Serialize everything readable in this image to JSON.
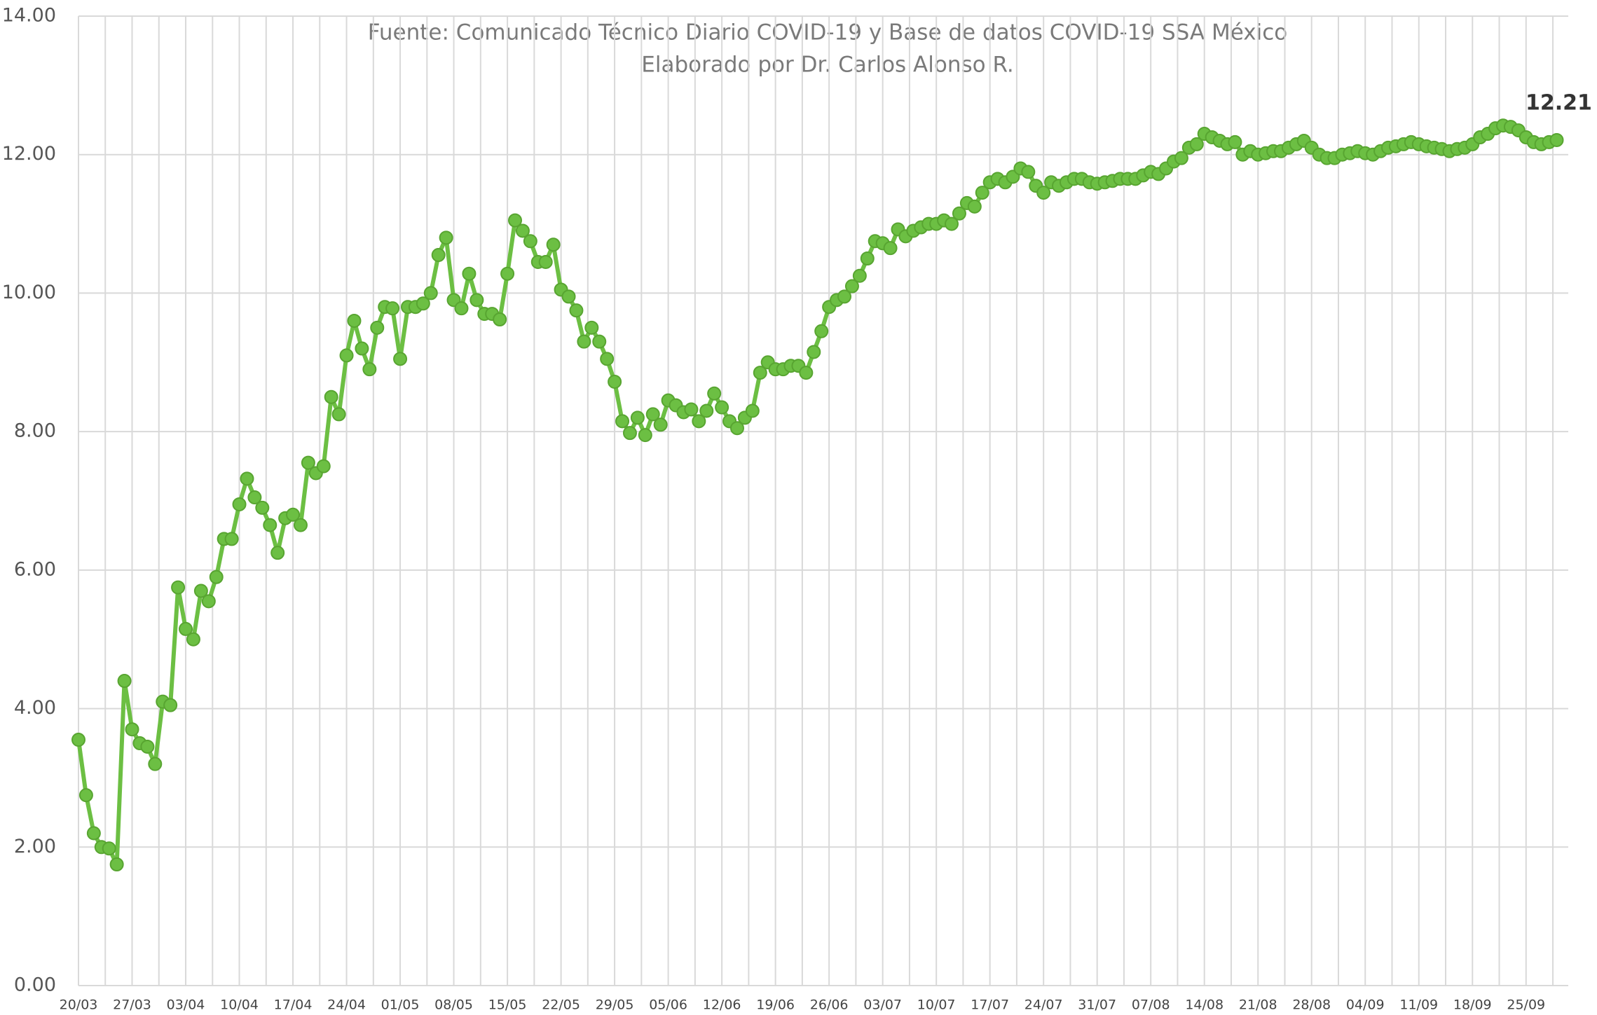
{
  "chart_data": {
    "type": "line",
    "subtitle": [
      "Fuente: Comunicado Técnico Diario COVID-19 y Base de datos COVID-19 SSA México",
      "Elaborado por Dr. Carlos Alonso R."
    ],
    "categories": [
      "20/03",
      null,
      null,
      null,
      null,
      null,
      null,
      "27/03",
      null,
      null,
      null,
      null,
      null,
      null,
      "03/04",
      null,
      null,
      null,
      null,
      null,
      null,
      "10/04",
      null,
      null,
      null,
      null,
      null,
      null,
      "17/04",
      null,
      null,
      null,
      null,
      null,
      null,
      "24/04",
      null,
      null,
      null,
      null,
      null,
      null,
      "01/05",
      null,
      null,
      null,
      null,
      null,
      null,
      "08/05",
      null,
      null,
      null,
      null,
      null,
      null,
      "15/05",
      null,
      null,
      null,
      null,
      null,
      null,
      "22/05",
      null,
      null,
      null,
      null,
      null,
      null,
      "29/05",
      null,
      null,
      null,
      null,
      null,
      null,
      "05/06",
      null,
      null,
      null,
      null,
      null,
      null,
      "12/06",
      null,
      null,
      null,
      null,
      null,
      null,
      "19/06",
      null,
      null,
      null,
      null,
      null,
      null,
      "26/06",
      null,
      null,
      null,
      null,
      null,
      null,
      "03/07",
      null,
      null,
      null,
      null,
      null,
      null,
      "10/07",
      null,
      null,
      null,
      null,
      null,
      null,
      "17/07",
      null,
      null,
      null,
      null,
      null,
      null,
      "24/07",
      null,
      null,
      null,
      null,
      null,
      null,
      "31/07",
      null,
      null,
      null,
      null,
      null,
      null,
      "07/08",
      null,
      null,
      null,
      null,
      null,
      null,
      "14/08",
      null,
      null,
      null,
      null,
      null,
      null,
      "21/08",
      null,
      null,
      null,
      null,
      null,
      null,
      "28/08",
      null,
      null,
      null,
      null,
      null,
      null,
      "04/09",
      null,
      null,
      null,
      null,
      null,
      null,
      "11/09",
      null,
      null,
      null,
      null,
      null,
      null,
      "18/09",
      null,
      null,
      null,
      null,
      null,
      null,
      "25/09",
      null,
      null,
      null,
      null
    ],
    "series": [
      {
        "color": "#6cbf43",
        "values": [
          3.55,
          2.75,
          2.2,
          2.0,
          1.98,
          1.75,
          4.4,
          3.7,
          3.5,
          3.45,
          3.2,
          4.1,
          4.05,
          5.75,
          5.15,
          5.0,
          5.7,
          5.55,
          5.9,
          6.45,
          6.45,
          6.95,
          7.32,
          7.05,
          6.9,
          6.65,
          6.25,
          6.75,
          6.8,
          6.65,
          7.55,
          7.4,
          7.5,
          8.5,
          8.25,
          9.1,
          9.6,
          9.2,
          8.9,
          9.5,
          9.8,
          9.78,
          9.05,
          9.8,
          9.8,
          9.85,
          10.0,
          10.55,
          10.8,
          9.9,
          9.78,
          10.28,
          9.9,
          9.7,
          9.7,
          9.62,
          10.28,
          11.05,
          10.9,
          10.75,
          10.45,
          10.45,
          10.7,
          10.05,
          9.95,
          9.75,
          9.3,
          9.5,
          9.3,
          9.05,
          8.72,
          8.15,
          7.98,
          8.2,
          7.95,
          8.25,
          8.1,
          8.45,
          8.38,
          8.28,
          8.32,
          8.15,
          8.3,
          8.55,
          8.35,
          8.15,
          8.05,
          8.2,
          8.3,
          8.85,
          9.0,
          8.9,
          8.9,
          8.95,
          8.95,
          8.85,
          9.15,
          9.45,
          9.8,
          9.9,
          9.95,
          10.1,
          10.25,
          10.5,
          10.75,
          10.72,
          10.65,
          10.92,
          10.82,
          10.9,
          10.95,
          11.0,
          11.0,
          11.05,
          11.0,
          11.15,
          11.3,
          11.25,
          11.45,
          11.6,
          11.65,
          11.6,
          11.68,
          11.8,
          11.75,
          11.55,
          11.45,
          11.6,
          11.55,
          11.6,
          11.65,
          11.65,
          11.6,
          11.58,
          11.6,
          11.62,
          11.65,
          11.65,
          11.65,
          11.7,
          11.75,
          11.72,
          11.8,
          11.9,
          11.95,
          12.1,
          12.15,
          12.3,
          12.25,
          12.2,
          12.15,
          12.18,
          12.0,
          12.05,
          12.0,
          12.02,
          12.05,
          12.05,
          12.1,
          12.15,
          12.2,
          12.1,
          12.0,
          11.95,
          11.95,
          12.0,
          12.02,
          12.05,
          12.02,
          12.0,
          12.05,
          12.1,
          12.12,
          12.15,
          12.18,
          12.15,
          12.12,
          12.1,
          12.08,
          12.05,
          12.08,
          12.1,
          12.15,
          12.25,
          12.3,
          12.38,
          12.42,
          12.4,
          12.35,
          12.25,
          12.18,
          12.15,
          12.18,
          12.21
        ],
        "value_labels": [
          null,
          null,
          null,
          null,
          null,
          null,
          null,
          null,
          null,
          null,
          null,
          null,
          null,
          null,
          null,
          null,
          null,
          null,
          null,
          null,
          null,
          null,
          null,
          null,
          null,
          null,
          null,
          null,
          null,
          null,
          null,
          null,
          null,
          null,
          null,
          null,
          null,
          null,
          null,
          null,
          null,
          null,
          null,
          null,
          null,
          null,
          null,
          null,
          null,
          null,
          null,
          null,
          null,
          null,
          null,
          null,
          null,
          null,
          null,
          null,
          null,
          null,
          null,
          null,
          null,
          null,
          null,
          null,
          null,
          null,
          null,
          null,
          null,
          null,
          null,
          null,
          null,
          null,
          null,
          null,
          null,
          null,
          null,
          null,
          null,
          null,
          null,
          null,
          null,
          null,
          null,
          null,
          null,
          null,
          null,
          null,
          null,
          null,
          null,
          null,
          null,
          null,
          null,
          null,
          null,
          null,
          null,
          null,
          null,
          null,
          null,
          null,
          null,
          null,
          null,
          null,
          null,
          null,
          null,
          null,
          null,
          null,
          null,
          null,
          null,
          null,
          null,
          null,
          null,
          null,
          null,
          null,
          null,
          null,
          null,
          null,
          null,
          null,
          null,
          null,
          null,
          null,
          null,
          null,
          null,
          null,
          null,
          null,
          null,
          null,
          null,
          null,
          null,
          null,
          null,
          null,
          null,
          null,
          null,
          null,
          null,
          null,
          null,
          null,
          null,
          null,
          null,
          null,
          null,
          null,
          null,
          null,
          null,
          null,
          null,
          null,
          null,
          null,
          null,
          null,
          null,
          null,
          null,
          null,
          null,
          null,
          null,
          null,
          null,
          null,
          null,
          null,
          null,
          "12.21"
        ]
      }
    ],
    "ylim": [
      0,
      14
    ],
    "yticks": [
      {
        "value": 0,
        "label": "0.00"
      },
      {
        "value": 2,
        "label": "2.00"
      },
      {
        "value": 4,
        "label": "4.00"
      },
      {
        "value": 6,
        "label": "6.00"
      },
      {
        "value": 8,
        "label": "8.00"
      },
      {
        "value": 10,
        "label": "10.00"
      },
      {
        "value": 12,
        "label": "12.00"
      },
      {
        "value": 14,
        "label": "14.00"
      }
    ],
    "grid": true
  }
}
